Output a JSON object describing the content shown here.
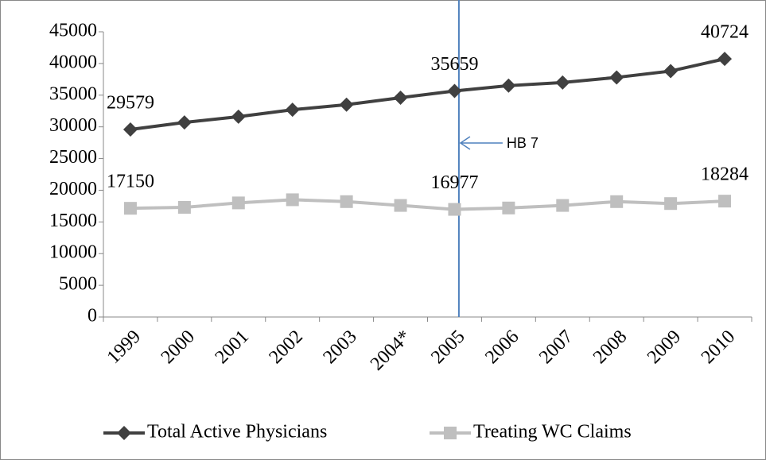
{
  "chart_data": {
    "type": "line",
    "categories": [
      "1999",
      "2000",
      "2001",
      "2002",
      "2003",
      "2004*",
      "2005",
      "2006",
      "2007",
      "2008",
      "2009",
      "2010"
    ],
    "series": [
      {
        "name": "Total Active Physicians",
        "color": "#404040",
        "marker": "diamond",
        "values": [
          29579,
          30700,
          31600,
          32700,
          33500,
          34600,
          35659,
          36500,
          37000,
          37800,
          38800,
          40724
        ]
      },
      {
        "name": "Treating WC Claims",
        "color": "#bfbfbf",
        "marker": "square",
        "values": [
          17150,
          17300,
          18000,
          18500,
          18200,
          17600,
          16977,
          17200,
          17600,
          18200,
          17900,
          18284
        ]
      }
    ],
    "labeled_points": [
      0,
      6,
      11
    ],
    "ylim": [
      0,
      45000
    ],
    "yticks": [
      0,
      5000,
      10000,
      15000,
      20000,
      25000,
      30000,
      35000,
      40000,
      45000
    ],
    "annotations": [
      {
        "text": "HB 7",
        "category": "2005",
        "color": "#4f81bd"
      }
    ],
    "legend": "bottom"
  }
}
